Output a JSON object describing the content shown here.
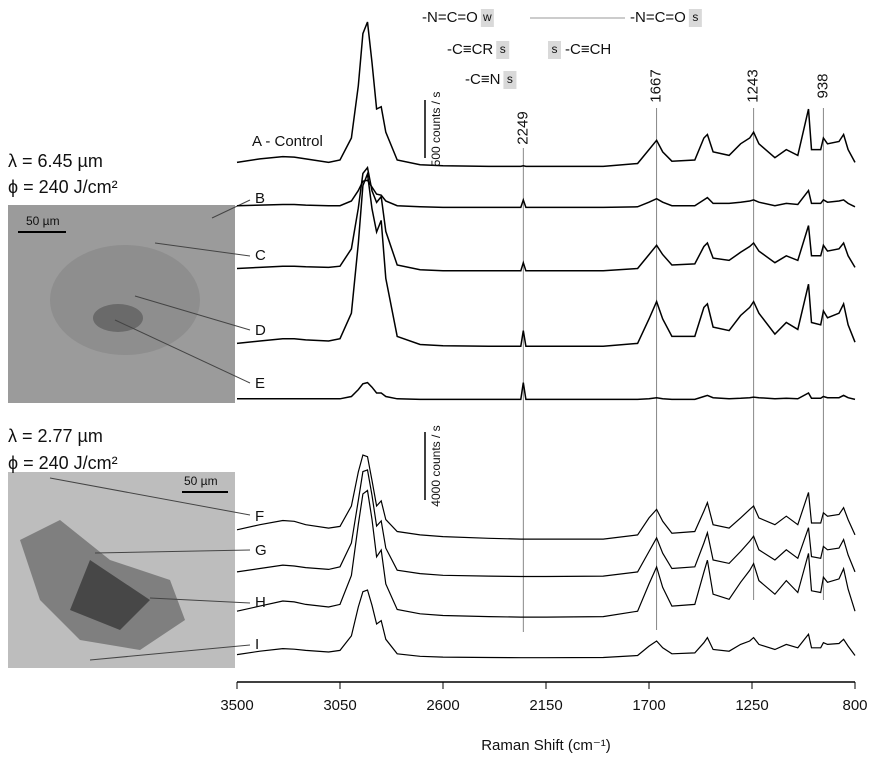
{
  "chart_data": [
    {
      "type": "line",
      "xlim": [
        3500,
        800
      ],
      "x": [
        3500,
        3400,
        3300,
        3250,
        3200,
        3100,
        3050,
        3000,
        2970,
        2950,
        2930,
        2910,
        2890,
        2870,
        2850,
        2800,
        2700,
        2600,
        2400,
        2260,
        2249,
        2238,
        2150,
        1900,
        1750,
        1700,
        1667,
        1640,
        1600,
        1500,
        1460,
        1445,
        1420,
        1350,
        1300,
        1260,
        1243,
        1220,
        1150,
        1100,
        1050,
        1003,
        990,
        950,
        938,
        920,
        870,
        850,
        830,
        800
      ],
      "scale_bar": {
        "value": 500,
        "label": "500 counts / s"
      },
      "series": [
        {
          "name": "A - Control",
          "color": "#000",
          "values": [
            40,
            70,
            90,
            85,
            70,
            40,
            60,
            250,
            700,
            1150,
            1250,
            900,
            500,
            520,
            300,
            60,
            20,
            10,
            5,
            5,
            10,
            5,
            5,
            5,
            30,
            150,
            230,
            130,
            50,
            60,
            250,
            280,
            130,
            100,
            200,
            250,
            300,
            200,
            80,
            150,
            100,
            500,
            150,
            150,
            250,
            200,
            220,
            280,
            150,
            40
          ]
        },
        {
          "name": "B",
          "color": "#000",
          "values": [
            20,
            25,
            30,
            30,
            25,
            20,
            20,
            60,
            150,
            230,
            240,
            180,
            120,
            110,
            60,
            20,
            10,
            5,
            5,
            5,
            70,
            5,
            5,
            5,
            10,
            50,
            80,
            50,
            20,
            20,
            70,
            90,
            40,
            40,
            50,
            60,
            70,
            50,
            20,
            40,
            30,
            150,
            40,
            40,
            70,
            50,
            60,
            70,
            40,
            10
          ]
        },
        {
          "name": "C",
          "color": "#000",
          "values": [
            30,
            40,
            50,
            50,
            45,
            40,
            50,
            200,
            550,
            850,
            900,
            700,
            600,
            650,
            350,
            60,
            20,
            10,
            10,
            10,
            80,
            10,
            10,
            10,
            30,
            150,
            230,
            150,
            60,
            70,
            220,
            250,
            120,
            100,
            170,
            220,
            250,
            180,
            80,
            140,
            100,
            400,
            140,
            140,
            230,
            180,
            200,
            250,
            140,
            40
          ]
        },
        {
          "name": "D",
          "color": "#000",
          "values": [
            40,
            60,
            80,
            80,
            70,
            60,
            80,
            300,
            900,
            1400,
            1500,
            1200,
            1000,
            1100,
            600,
            100,
            30,
            20,
            15,
            15,
            150,
            15,
            15,
            15,
            40,
            250,
            400,
            250,
            100,
            100,
            350,
            380,
            180,
            150,
            280,
            350,
            400,
            300,
            120,
            220,
            160,
            550,
            220,
            200,
            320,
            260,
            300,
            380,
            200,
            50
          ]
        },
        {
          "name": "E",
          "color": "#000",
          "values": [
            10,
            10,
            10,
            10,
            10,
            10,
            10,
            30,
            90,
            140,
            150,
            110,
            60,
            60,
            30,
            10,
            5,
            5,
            5,
            5,
            150,
            5,
            5,
            5,
            5,
            10,
            20,
            10,
            5,
            5,
            30,
            40,
            20,
            10,
            15,
            20,
            25,
            20,
            10,
            15,
            10,
            60,
            15,
            15,
            30,
            20,
            20,
            40,
            20,
            5
          ]
        }
      ]
    },
    {
      "type": "line",
      "xlim": [
        3500,
        800
      ],
      "xticks": [
        3500,
        3050,
        2600,
        2150,
        1700,
        1250,
        800
      ],
      "xlabel": "Raman Shift (cm⁻¹)",
      "x": [
        3500,
        3400,
        3300,
        3250,
        3200,
        3100,
        3050,
        3000,
        2970,
        2950,
        2930,
        2910,
        2890,
        2870,
        2850,
        2800,
        2700,
        2600,
        2400,
        2260,
        2249,
        2238,
        2150,
        1900,
        1750,
        1700,
        1667,
        1640,
        1600,
        1500,
        1460,
        1445,
        1420,
        1350,
        1300,
        1260,
        1243,
        1220,
        1150,
        1100,
        1050,
        1003,
        990,
        950,
        938,
        920,
        870,
        850,
        830,
        800
      ],
      "scale_bar": {
        "value": 4000,
        "label": "4000 counts / s"
      },
      "series": [
        {
          "name": "F",
          "color": "#000",
          "values": [
            600,
            900,
            1150,
            1100,
            900,
            700,
            800,
            2000,
            4000,
            5000,
            4900,
            3500,
            2000,
            2300,
            1200,
            500,
            300,
            200,
            100,
            50,
            50,
            50,
            50,
            50,
            300,
            1300,
            1800,
            1100,
            400,
            500,
            1700,
            2200,
            900,
            700,
            1300,
            1800,
            2000,
            1300,
            900,
            1400,
            900,
            2800,
            1000,
            1000,
            1600,
            1400,
            1500,
            1900,
            1200,
            300
          ]
        },
        {
          "name": "G",
          "color": "#000",
          "values": [
            300,
            500,
            700,
            650,
            550,
            450,
            600,
            2000,
            4500,
            6200,
            6300,
            4800,
            3000,
            3300,
            1700,
            400,
            200,
            100,
            50,
            30,
            30,
            30,
            30,
            50,
            300,
            1500,
            2300,
            1400,
            500,
            600,
            2000,
            2600,
            1000,
            800,
            1500,
            2100,
            2400,
            1600,
            1000,
            1600,
            1100,
            2900,
            1200,
            1100,
            1800,
            1600,
            1700,
            2200,
            1300,
            300
          ]
        },
        {
          "name": "H",
          "color": "#000",
          "values": [
            400,
            700,
            1000,
            950,
            800,
            650,
            800,
            2500,
            5500,
            7300,
            7500,
            5800,
            3600,
            4000,
            2000,
            500,
            250,
            150,
            80,
            50,
            50,
            50,
            50,
            80,
            400,
            2000,
            3000,
            1800,
            700,
            800,
            2700,
            3400,
            1400,
            1100,
            2100,
            2800,
            3200,
            2200,
            1400,
            2200,
            1500,
            3800,
            1600,
            1500,
            2400,
            2100,
            2300,
            2900,
            1700,
            400
          ]
        },
        {
          "name": "I",
          "color": "#000",
          "values": [
            200,
            400,
            550,
            520,
            450,
            350,
            450,
            1300,
            3000,
            3900,
            4000,
            3100,
            2000,
            2200,
            1100,
            250,
            100,
            50,
            30,
            20,
            20,
            20,
            20,
            30,
            150,
            700,
            1000,
            600,
            250,
            300,
            900,
            1200,
            500,
            400,
            800,
            1000,
            1200,
            800,
            500,
            800,
            600,
            1400,
            600,
            600,
            900,
            800,
            850,
            1100,
            700,
            150
          ]
        }
      ]
    }
  ],
  "peak_lines": [
    2249,
    1667,
    1243,
    938
  ],
  "groups": [
    {
      "text": "-N=C=O",
      "tag": "w"
    },
    {
      "text": "-N=C=O",
      "tag": "s"
    },
    {
      "text": "-C≡CR",
      "tag": "s"
    },
    {
      "text": "-C≡CH",
      "tag": "s"
    },
    {
      "text": "-C≡N",
      "tag": "s"
    }
  ],
  "panels": [
    {
      "lambda": "λ = 6.45 µm",
      "phi": "ϕ = 240 J/cm²",
      "scale": "50 µm"
    },
    {
      "lambda": "λ = 2.77 µm",
      "phi": "ϕ = 240 J/cm²",
      "scale": "50 µm"
    }
  ]
}
